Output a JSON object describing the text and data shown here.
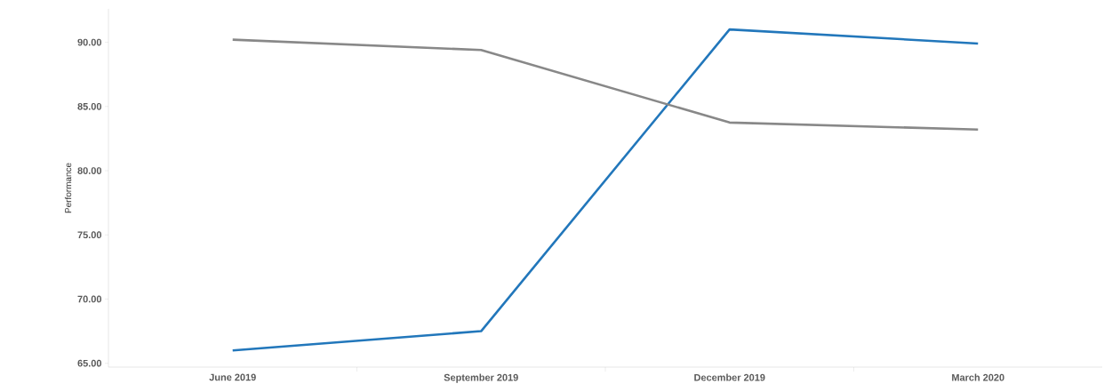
{
  "chart_data": {
    "type": "line",
    "ylabel": "Performance",
    "categories": [
      "June 2019",
      "September 2019",
      "December 2019",
      "March 2020"
    ],
    "series": [
      {
        "color": "#2277bb",
        "values": [
          66.0,
          67.5,
          91.0,
          89.9
        ]
      },
      {
        "color": "#888888",
        "values": [
          90.2,
          89.4,
          83.75,
          83.2
        ]
      }
    ],
    "ylim": [
      64.7,
      92.6
    ],
    "yticks": [
      {
        "value": 65,
        "label": "65.00"
      },
      {
        "value": 70,
        "label": "70.00"
      },
      {
        "value": 75,
        "label": "75.00"
      },
      {
        "value": 80,
        "label": "80.00"
      },
      {
        "value": 85,
        "label": "85.00"
      },
      {
        "value": 90,
        "label": "90.00"
      }
    ],
    "grid": false,
    "marker": "none",
    "line_style": "solid"
  }
}
